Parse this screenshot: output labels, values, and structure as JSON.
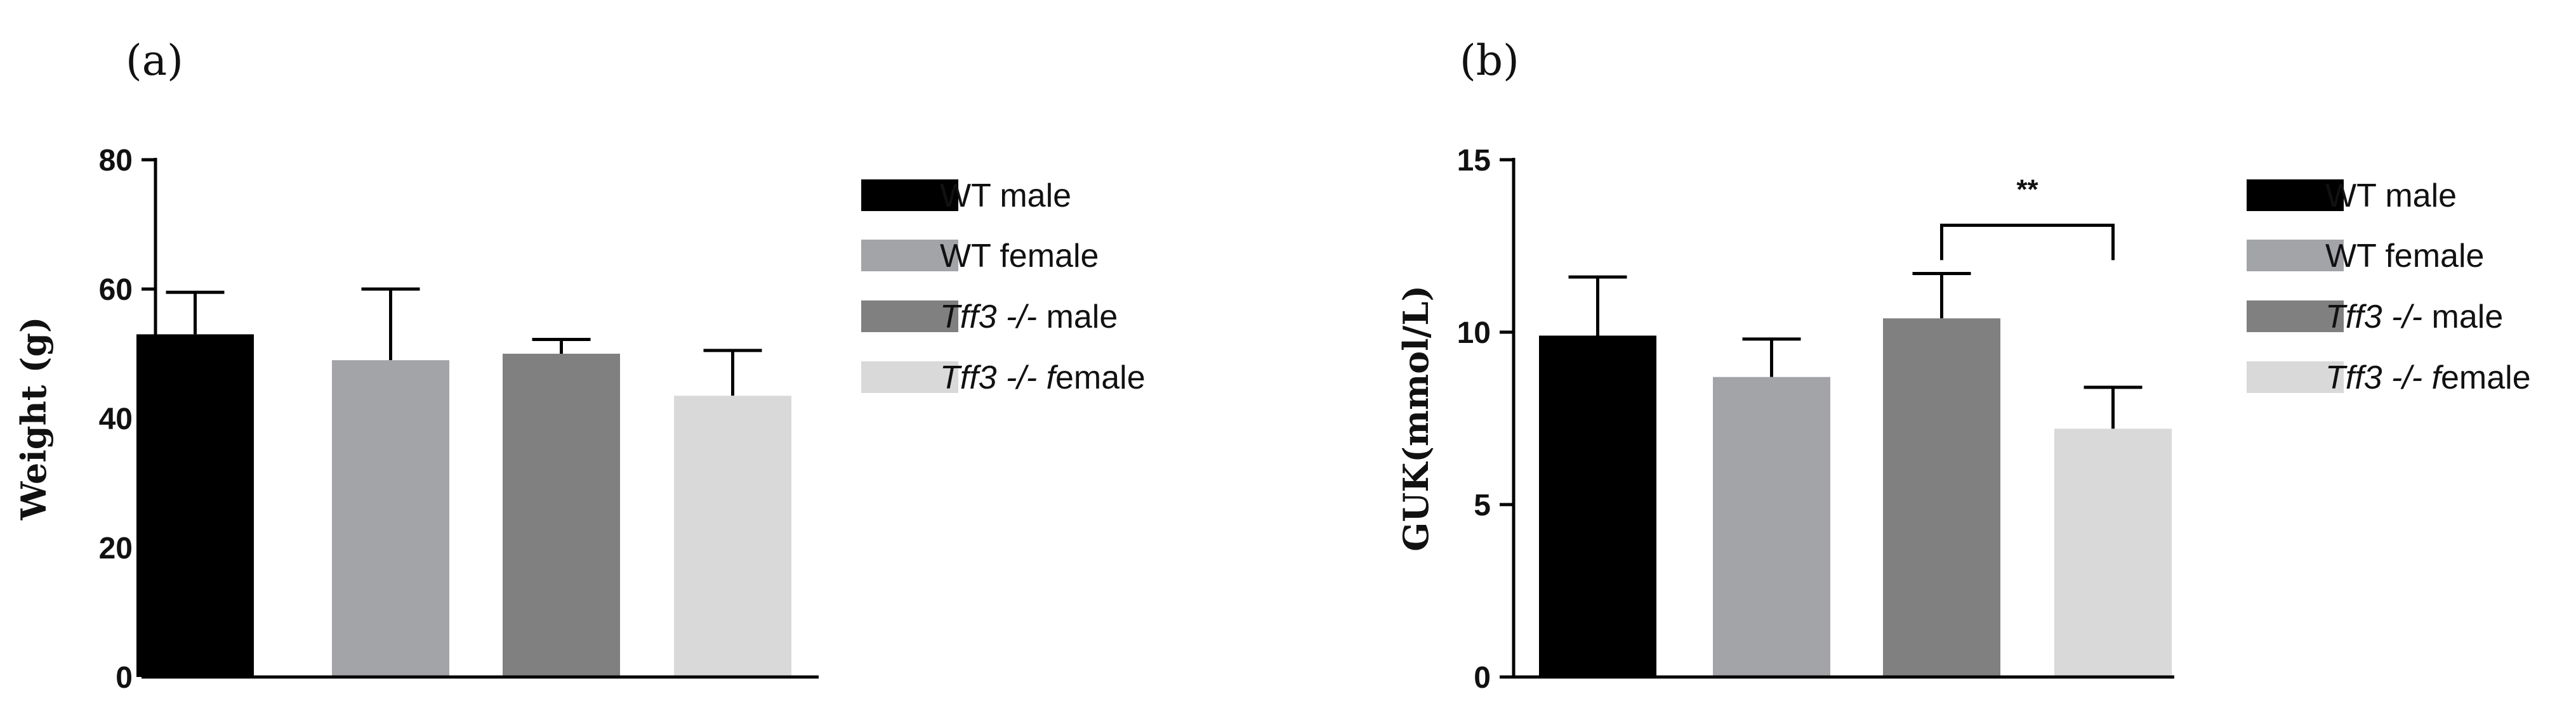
{
  "chart_data": [
    {
      "type": "bar",
      "panel_label": "(a)",
      "ylabel": "Weight (g)",
      "xlabel": "",
      "ylim": [
        0,
        80
      ],
      "yticks": [
        0,
        20,
        40,
        60,
        80
      ],
      "categories": [
        "WT male",
        "WT female",
        "Tff3 -/- male",
        "Tff3 -/- female"
      ],
      "values": [
        53,
        49,
        50,
        43.5
      ],
      "errors": [
        6.5,
        11,
        2.2,
        7
      ],
      "colors": [
        "#000000",
        "#a3a4a8",
        "#808080",
        "#d9d9d9"
      ],
      "legend": [
        {
          "italic": "",
          "text": "WT male"
        },
        {
          "italic": "",
          "text": "WT female"
        },
        {
          "italic": "Tff3 -/-",
          "text": " male"
        },
        {
          "italic": "Tff3 -/- f",
          "text": "emale"
        }
      ],
      "significance": []
    },
    {
      "type": "bar",
      "panel_label": "(b)",
      "ylabel": "GUK(mmol/L)",
      "xlabel": "",
      "ylim": [
        0,
        15
      ],
      "yticks": [
        0,
        5,
        10,
        15
      ],
      "categories": [
        "WT male",
        "WT female",
        "Tff3 -/- male",
        "Tff3 -/- female"
      ],
      "values": [
        9.9,
        8.7,
        10.4,
        7.2
      ],
      "errors": [
        1.7,
        1.1,
        1.3,
        1.2
      ],
      "colors": [
        "#000000",
        "#a3a4a8",
        "#808080",
        "#d9d9d9"
      ],
      "legend": [
        {
          "italic": "",
          "text": "WT male"
        },
        {
          "italic": "",
          "text": "WT female"
        },
        {
          "italic": "Tff3 -/-",
          "text": " male"
        },
        {
          "italic": "Tff3 -/- f",
          "text": "emale"
        }
      ],
      "significance": [
        {
          "from": 2,
          "to": 3,
          "level": 13.1,
          "label": "**"
        }
      ]
    }
  ]
}
